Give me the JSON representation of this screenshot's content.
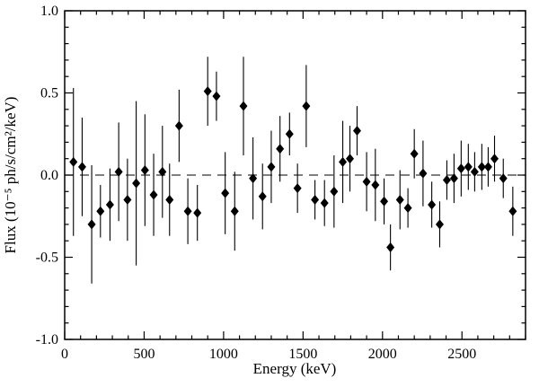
{
  "chart_data": {
    "type": "scatter",
    "title": "",
    "xlabel": "Energy (keV)",
    "ylabel": "Flux (10⁻⁵ ph/s/cm²/keV)",
    "xlim": [
      0,
      2900
    ],
    "ylim": [
      -1.0,
      1.0
    ],
    "grid": false,
    "legend": "none",
    "marker": "filled-diamond",
    "marker_color": "#000000",
    "background_color": "#ffffff",
    "zero_line": {
      "y": 0,
      "style": "dashed",
      "color": "#333333"
    },
    "xticks": {
      "values": [
        0,
        500,
        1000,
        1500,
        2000,
        2500
      ],
      "labels": [
        "0",
        "500",
        "1000",
        "1500",
        "2000",
        "2500"
      ]
    },
    "yticks": {
      "values": [
        -1.0,
        -0.5,
        0.0,
        0.5,
        1.0
      ],
      "labels": [
        "-1.0",
        "-0.5",
        "0.0",
        "0.5",
        "1.0"
      ]
    },
    "x_minor_step": 100,
    "y_minor_step": 0.1,
    "series": [
      {
        "name": "flux",
        "point_format": [
          "energy_keV",
          "flux",
          "error"
        ],
        "points": [
          [
            55,
            0.08,
            0.45
          ],
          [
            110,
            0.05,
            0.3
          ],
          [
            170,
            -0.3,
            0.36
          ],
          [
            225,
            -0.22,
            0.16
          ],
          [
            285,
            -0.18,
            0.22
          ],
          [
            340,
            0.02,
            0.3
          ],
          [
            395,
            -0.15,
            0.25
          ],
          [
            450,
            -0.05,
            0.5
          ],
          [
            505,
            0.03,
            0.34
          ],
          [
            560,
            -0.12,
            0.25
          ],
          [
            615,
            0.02,
            0.28
          ],
          [
            660,
            -0.15,
            0.22
          ],
          [
            720,
            0.3,
            0.22
          ],
          [
            775,
            -0.22,
            0.2
          ],
          [
            835,
            -0.23,
            0.17
          ],
          [
            900,
            0.51,
            0.21
          ],
          [
            955,
            0.48,
            0.15
          ],
          [
            1010,
            -0.11,
            0.25
          ],
          [
            1070,
            -0.22,
            0.24
          ],
          [
            1125,
            0.42,
            0.3
          ],
          [
            1185,
            -0.02,
            0.25
          ],
          [
            1245,
            -0.13,
            0.2
          ],
          [
            1300,
            0.05,
            0.22
          ],
          [
            1355,
            0.16,
            0.2
          ],
          [
            1415,
            0.25,
            0.13
          ],
          [
            1465,
            -0.08,
            0.15
          ],
          [
            1520,
            0.42,
            0.25
          ],
          [
            1575,
            -0.15,
            0.12
          ],
          [
            1635,
            -0.17,
            0.14
          ],
          [
            1695,
            -0.1,
            0.22
          ],
          [
            1750,
            0.08,
            0.25
          ],
          [
            1795,
            0.1,
            0.2
          ],
          [
            1840,
            0.27,
            0.15
          ],
          [
            1900,
            -0.04,
            0.18
          ],
          [
            1955,
            -0.06,
            0.22
          ],
          [
            2010,
            -0.16,
            0.14
          ],
          [
            2050,
            -0.44,
            0.14
          ],
          [
            2110,
            -0.15,
            0.18
          ],
          [
            2160,
            -0.2,
            0.12
          ],
          [
            2200,
            0.13,
            0.15
          ],
          [
            2255,
            0.01,
            0.2
          ],
          [
            2310,
            -0.18,
            0.14
          ],
          [
            2360,
            -0.3,
            0.14
          ],
          [
            2405,
            -0.03,
            0.12
          ],
          [
            2450,
            -0.02,
            0.15
          ],
          [
            2495,
            0.04,
            0.17
          ],
          [
            2540,
            0.05,
            0.14
          ],
          [
            2580,
            0.02,
            0.12
          ],
          [
            2625,
            0.05,
            0.14
          ],
          [
            2665,
            0.05,
            0.12
          ],
          [
            2705,
            0.1,
            0.14
          ],
          [
            2760,
            -0.02,
            0.12
          ],
          [
            2820,
            -0.22,
            0.15
          ]
        ]
      }
    ]
  }
}
